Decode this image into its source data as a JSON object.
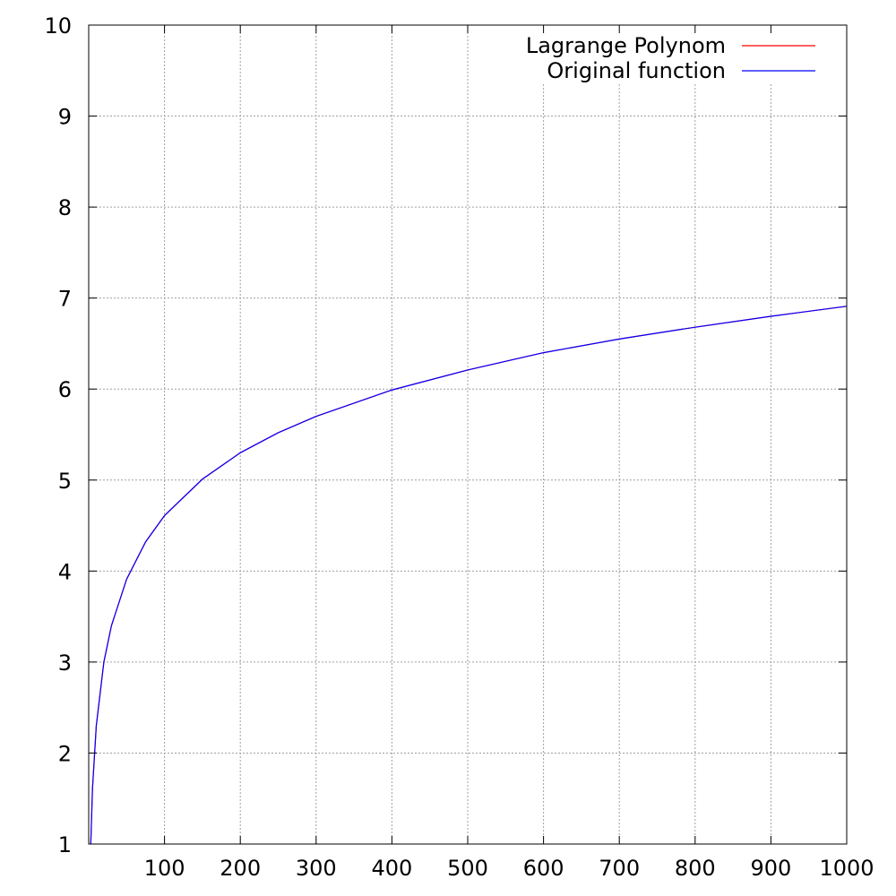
{
  "chart_data": {
    "type": "line",
    "title": "",
    "xlabel": "",
    "ylabel": "",
    "xlim": [
      0,
      1000
    ],
    "ylim": [
      1,
      10
    ],
    "x_ticks": [
      100,
      200,
      300,
      400,
      500,
      600,
      700,
      800,
      900,
      1000
    ],
    "x_tick_labels": [
      "100",
      "200",
      "300",
      "400",
      "500",
      "600",
      "700",
      "800",
      "900",
      "1000"
    ],
    "y_ticks": [
      1,
      2,
      3,
      4,
      5,
      6,
      7,
      8,
      9,
      10
    ],
    "y_tick_labels": [
      "1",
      "2",
      "3",
      "4",
      "5",
      "6",
      "7",
      "8",
      "9",
      "10"
    ],
    "grid": true,
    "legend_position": "top-right",
    "series": [
      {
        "name": "Lagrange Polynom",
        "color": "#ff0000",
        "x": [
          2.72,
          5,
          10,
          20,
          30,
          50,
          75,
          100,
          150,
          200,
          250,
          300,
          400,
          500,
          600,
          700,
          800,
          900,
          1000
        ],
        "y": [
          1.0,
          1.61,
          2.3,
          3.0,
          3.4,
          3.91,
          4.32,
          4.61,
          5.01,
          5.3,
          5.52,
          5.7,
          5.99,
          6.21,
          6.4,
          6.55,
          6.68,
          6.8,
          6.91
        ]
      },
      {
        "name": "Original function",
        "color": "#0000ff",
        "x": [
          2.72,
          5,
          10,
          20,
          30,
          50,
          75,
          100,
          150,
          200,
          250,
          300,
          400,
          500,
          600,
          700,
          800,
          900,
          1000
        ],
        "y": [
          1.0,
          1.61,
          2.3,
          3.0,
          3.4,
          3.91,
          4.32,
          4.61,
          5.01,
          5.3,
          5.52,
          5.7,
          5.99,
          6.21,
          6.4,
          6.55,
          6.68,
          6.8,
          6.91
        ]
      }
    ]
  }
}
